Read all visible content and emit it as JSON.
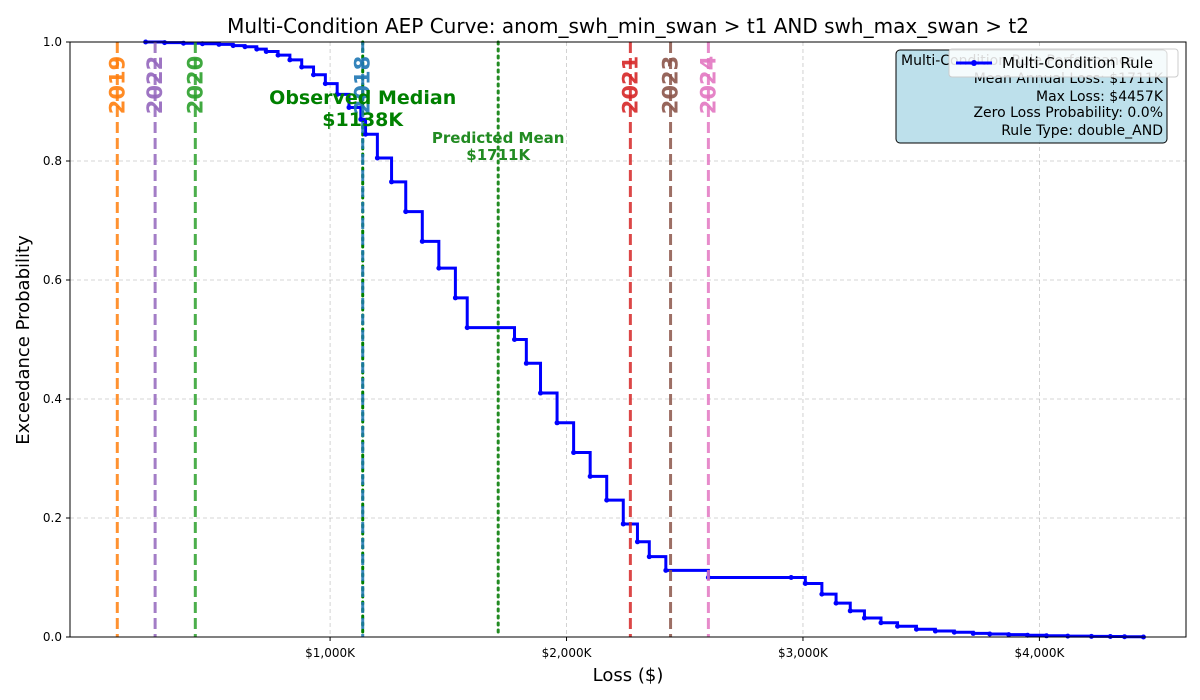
{
  "chart_data": {
    "type": "line",
    "title": "Multi-Condition AEP Curve: anom_swh_min_swan > t1 AND swh_max_swan > t2",
    "xlabel": "Loss ($)",
    "ylabel": "Exceedance Probability",
    "xlim": [
      -100000,
      4620000
    ],
    "ylim": [
      0,
      1
    ],
    "x_ticks": [
      {
        "value": 1000000,
        "label": "$1,000K"
      },
      {
        "value": 2000000,
        "label": "$2,000K"
      },
      {
        "value": 3000000,
        "label": "$3,000K"
      },
      {
        "value": 4000000,
        "label": "$4,000K"
      }
    ],
    "y_ticks": [
      {
        "value": 0.0,
        "label": "0.0"
      },
      {
        "value": 0.2,
        "label": "0.2"
      },
      {
        "value": 0.4,
        "label": "0.4"
      },
      {
        "value": 0.6,
        "label": "0.6"
      },
      {
        "value": 0.8,
        "label": "0.8"
      },
      {
        "value": 1.0,
        "label": "1.0"
      }
    ],
    "grid": true,
    "legend_position": "top-right",
    "series": [
      {
        "name": "Multi-Condition Rule",
        "color": "#0000ff",
        "x": [
          220000,
          300000,
          380000,
          460000,
          530000,
          590000,
          640000,
          690000,
          730000,
          780000,
          830000,
          880000,
          930000,
          980000,
          1030000,
          1080000,
          1130000,
          1150000,
          1200000,
          1260000,
          1320000,
          1390000,
          1460000,
          1530000,
          1580000,
          1780000,
          1830000,
          1890000,
          1960000,
          2030000,
          2100000,
          2170000,
          2240000,
          2300000,
          2350000,
          2420000,
          2600000,
          2950000,
          3010000,
          3080000,
          3140000,
          3200000,
          3260000,
          3330000,
          3400000,
          3480000,
          3560000,
          3640000,
          3720000,
          3790000,
          3870000,
          3950000,
          4030000,
          4120000,
          4220000,
          4300000,
          4360000,
          4440000
        ],
        "y": [
          1.0,
          0.999,
          0.998,
          0.997,
          0.996,
          0.994,
          0.992,
          0.988,
          0.984,
          0.978,
          0.97,
          0.958,
          0.945,
          0.93,
          0.912,
          0.89,
          0.87,
          0.845,
          0.805,
          0.765,
          0.715,
          0.665,
          0.62,
          0.57,
          0.52,
          0.5,
          0.46,
          0.41,
          0.36,
          0.31,
          0.27,
          0.23,
          0.19,
          0.16,
          0.135,
          0.112,
          0.1,
          0.1,
          0.09,
          0.072,
          0.057,
          0.044,
          0.032,
          0.024,
          0.018,
          0.013,
          0.01,
          0.008,
          0.006,
          0.005,
          0.004,
          0.003,
          0.002,
          0.0015,
          0.001,
          0.0008,
          0.0005,
          0.0
        ]
      }
    ],
    "year_lines": [
      {
        "label": "2019",
        "x": 100000,
        "color": "#ff7f0e"
      },
      {
        "label": "2022",
        "x": 260000,
        "color": "#9467bd"
      },
      {
        "label": "2020",
        "x": 430000,
        "color": "#2ca02c"
      },
      {
        "label": "2018",
        "x": 1138000,
        "color": "#1f77b4"
      },
      {
        "label": "2021",
        "x": 2270000,
        "color": "#d62728"
      },
      {
        "label": "2023",
        "x": 2440000,
        "color": "#8c564b"
      },
      {
        "label": "2024",
        "x": 2600000,
        "color": "#e377c2"
      }
    ],
    "reference_lines": [
      {
        "name": "Observed Median",
        "value_label": "$1138K",
        "x": 1138000,
        "color": "#008000",
        "style": "dotted"
      },
      {
        "name": "Predicted Mean",
        "value_label": "$1711K",
        "x": 1711000,
        "color": "#228b22",
        "style": "dotted"
      }
    ],
    "stats_box": {
      "title": "Multi-Condition Rule Performance",
      "lines": [
        "Mean Annual Loss: $1711K",
        "Max Loss: $4457K",
        "Zero Loss Probability: 0.0%",
        "Rule Type: double_AND"
      ],
      "background": "#add8e6"
    }
  }
}
